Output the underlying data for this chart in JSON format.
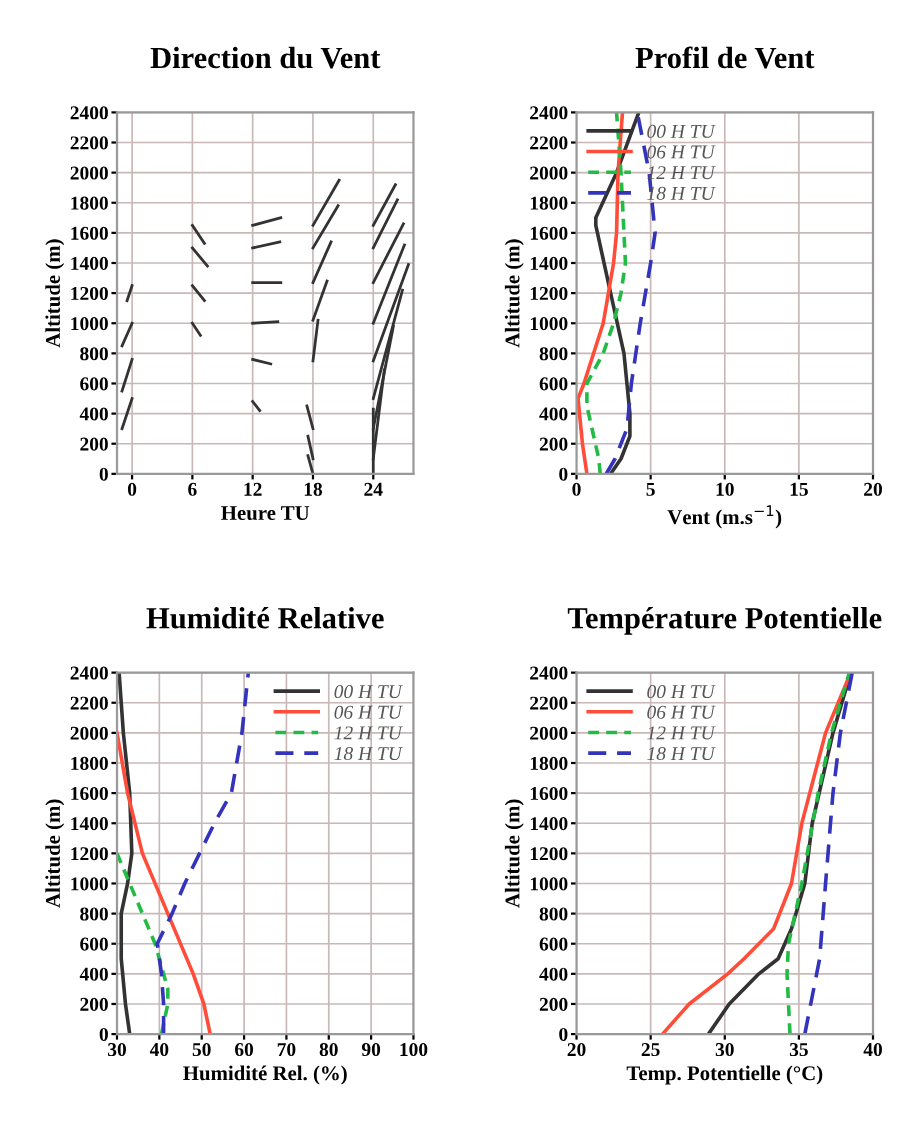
{
  "chart_data": [
    {
      "type": "line",
      "title": "Direction du Vent",
      "xlabel": "Heure TU",
      "ylabel": "Altitude (m)",
      "xlim": [
        -1.5,
        28
      ],
      "xticks": [
        0,
        6,
        12,
        18,
        24
      ],
      "ylim": [
        0,
        2400
      ],
      "yticks": [
        0,
        200,
        400,
        600,
        800,
        1000,
        1200,
        1400,
        1600,
        1800,
        2000,
        2200,
        2400
      ],
      "grid": true,
      "legend": false,
      "marker": "none",
      "line_style": "solid",
      "series": [
        {
          "color": "#333333",
          "x": [
            -1.0,
            0
          ],
          "values": [
            300,
            500
          ]
        },
        {
          "color": "#333333",
          "x": [
            -1.0,
            0
          ],
          "values": [
            550,
            760
          ]
        },
        {
          "color": "#333333",
          "x": [
            -1.0,
            0
          ],
          "values": [
            850,
            1000
          ]
        },
        {
          "color": "#333333",
          "x": [
            -0.5,
            0
          ],
          "values": [
            1150,
            1250
          ]
        },
        {
          "color": "#333333",
          "x": [
            6,
            7.2
          ],
          "values": [
            1650,
            1530
          ]
        },
        {
          "color": "#333333",
          "x": [
            6,
            7.5
          ],
          "values": [
            1500,
            1380
          ]
        },
        {
          "color": "#333333",
          "x": [
            6,
            7.2
          ],
          "values": [
            1250,
            1150
          ]
        },
        {
          "color": "#333333",
          "x": [
            6,
            6.8
          ],
          "values": [
            1000,
            920
          ]
        },
        {
          "color": "#333333",
          "x": [
            12,
            12.7
          ],
          "values": [
            480,
            420
          ]
        },
        {
          "color": "#333333",
          "x": [
            12,
            13.8
          ],
          "values": [
            760,
            730
          ]
        },
        {
          "color": "#333333",
          "x": [
            12,
            14.5
          ],
          "values": [
            1000,
            1010
          ]
        },
        {
          "color": "#333333",
          "x": [
            12,
            14.8
          ],
          "values": [
            1270,
            1270
          ]
        },
        {
          "color": "#333333",
          "x": [
            12,
            14.7
          ],
          "values": [
            1500,
            1540
          ]
        },
        {
          "color": "#333333",
          "x": [
            12,
            14.8
          ],
          "values": [
            1650,
            1700
          ]
        },
        {
          "color": "#333333",
          "x": [
            18,
            17.5
          ],
          "values": [
            0,
            120
          ]
        },
        {
          "color": "#333333",
          "x": [
            18,
            17.5
          ],
          "values": [
            100,
            250
          ]
        },
        {
          "color": "#333333",
          "x": [
            18,
            17.4
          ],
          "values": [
            300,
            450
          ]
        },
        {
          "color": "#333333",
          "x": [
            18,
            18.5
          ],
          "values": [
            750,
            1020
          ]
        },
        {
          "color": "#333333",
          "x": [
            18,
            19.4
          ],
          "values": [
            1020,
            1280
          ]
        },
        {
          "color": "#333333",
          "x": [
            18,
            19.8
          ],
          "values": [
            1270,
            1540
          ]
        },
        {
          "color": "#333333",
          "x": [
            18,
            20.5
          ],
          "values": [
            1500,
            1780
          ]
        },
        {
          "color": "#333333",
          "x": [
            18,
            20.6
          ],
          "values": [
            1650,
            1950
          ]
        },
        {
          "color": "#333333",
          "x": [
            24,
            24
          ],
          "values": [
            0,
            430
          ]
        },
        {
          "color": "#333333",
          "x": [
            24,
            25.1
          ],
          "values": [
            100,
            690
          ]
        },
        {
          "color": "#333333",
          "x": [
            24,
            26.0
          ],
          "values": [
            300,
            980
          ]
        },
        {
          "color": "#333333",
          "x": [
            24,
            26.9
          ],
          "values": [
            500,
            1220
          ]
        },
        {
          "color": "#333333",
          "x": [
            24,
            27.5
          ],
          "values": [
            750,
            1390
          ]
        },
        {
          "color": "#333333",
          "x": [
            24,
            27.1
          ],
          "values": [
            1000,
            1520
          ]
        },
        {
          "color": "#333333",
          "x": [
            24,
            27.0
          ],
          "values": [
            1270,
            1660
          ]
        },
        {
          "color": "#333333",
          "x": [
            24,
            26.4
          ],
          "values": [
            1500,
            1820
          ]
        },
        {
          "color": "#333333",
          "x": [
            24,
            26.2
          ],
          "values": [
            1650,
            1920
          ]
        }
      ]
    },
    {
      "type": "line",
      "title": "Profil de Vent",
      "xlabel": "Vent (m.s$^{−1}$)",
      "ylabel": "Altitude (m)",
      "xlim": [
        0,
        20
      ],
      "xticks": [
        0,
        5,
        10,
        15,
        20
      ],
      "ylim": [
        0,
        2400
      ],
      "yticks": [
        0,
        200,
        400,
        600,
        800,
        1000,
        1200,
        1400,
        1600,
        1800,
        2000,
        2200,
        2400
      ],
      "grid": true,
      "legend": "top left",
      "marker": "none",
      "series": [
        {
          "name": "00 H TU",
          "color": "#333333",
          "line_style": "solid",
          "x": [
            2.3,
            3.0,
            3.6,
            3.6,
            3.2,
            2.3,
            1.3,
            1.3,
            2.7,
            4.2
          ],
          "values": [
            0,
            100,
            250,
            400,
            800,
            1200,
            1650,
            1700,
            2000,
            2400
          ]
        },
        {
          "name": "06 H TU",
          "color": "#ff4d3a",
          "line_style": "solid",
          "x": [
            0.7,
            0.4,
            0.1,
            0.5,
            1.8,
            2.5,
            2.7,
            2.8,
            3.1
          ],
          "values": [
            0,
            200,
            500,
            600,
            1000,
            1400,
            1600,
            2000,
            2400
          ]
        },
        {
          "name": "12 H TU",
          "color": "#22bb44",
          "line_style": "dashed",
          "x": [
            1.6,
            1.5,
            0.7,
            0.7,
            1.8,
            2.5,
            3.0,
            3.3,
            3.2,
            3.0,
            2.7
          ],
          "values": [
            0,
            100,
            450,
            600,
            800,
            1000,
            1200,
            1400,
            1600,
            2000,
            2400
          ]
        },
        {
          "name": "18 H TU",
          "color": "#3333bb",
          "line_style": "dashed",
          "x": [
            2.0,
            2.6,
            3.4,
            3.7,
            4.3,
            5.0,
            5.3,
            4.9,
            4.1
          ],
          "values": [
            0,
            100,
            300,
            600,
            1000,
            1400,
            1600,
            2000,
            2400
          ]
        }
      ]
    },
    {
      "type": "line",
      "title": "Humidité Relative",
      "xlabel": "Humidité Rel. (%)",
      "ylabel": "Altitude (m)",
      "xlim": [
        30,
        100
      ],
      "xticks": [
        30,
        40,
        50,
        60,
        70,
        80,
        90,
        100
      ],
      "ylim": [
        0,
        2400
      ],
      "yticks": [
        0,
        200,
        400,
        600,
        800,
        1000,
        1200,
        1400,
        1600,
        1800,
        2000,
        2200,
        2400
      ],
      "grid": true,
      "legend": "top right",
      "marker": "none",
      "series": [
        {
          "name": "00 H TU",
          "color": "#333333",
          "line_style": "solid",
          "x": [
            33,
            32,
            31,
            31,
            32.5,
            33.5,
            33,
            31.5,
            30.5
          ],
          "values": [
            0,
            200,
            500,
            800,
            1000,
            1200,
            1600,
            2000,
            2400
          ]
        },
        {
          "name": "06 H TU",
          "color": "#ff4d3a",
          "line_style": "solid",
          "x": [
            52,
            50.5,
            48,
            42,
            36,
            32.5,
            30
          ],
          "values": [
            0,
            200,
            400,
            800,
            1200,
            1600,
            2000
          ]
        },
        {
          "name": "12 H TU",
          "color": "#22bb44",
          "line_style": "dashed",
          "x": [
            40.5,
            42,
            42,
            39,
            33,
            30
          ],
          "values": [
            0,
            200,
            300,
            600,
            1000,
            1200
          ]
        },
        {
          "name": "18 H TU",
          "color": "#3333bb",
          "line_style": "dashed",
          "x": [
            41,
            41,
            40.5,
            39.5,
            43,
            46,
            53,
            57,
            59.5,
            61
          ],
          "values": [
            0,
            200,
            400,
            600,
            800,
            1000,
            1400,
            1600,
            2000,
            2400
          ]
        }
      ]
    },
    {
      "type": "line",
      "title": "Température Potentielle",
      "xlabel": "Temp. Potentielle (°C)",
      "ylabel": "Altitude (m)",
      "xlim": [
        20,
        40
      ],
      "xticks": [
        20,
        25,
        30,
        35,
        40
      ],
      "ylim": [
        0,
        2400
      ],
      "yticks": [
        0,
        200,
        400,
        600,
        800,
        1000,
        1200,
        1400,
        1600,
        1800,
        2000,
        2200,
        2400
      ],
      "grid": true,
      "legend": "top left",
      "marker": "none",
      "series": [
        {
          "name": "00 H TU",
          "color": "#333333",
          "line_style": "solid",
          "x": [
            28.9,
            30.3,
            32.3,
            33.6,
            34.5,
            35.4,
            35.9,
            37.3,
            38.5
          ],
          "values": [
            0,
            200,
            400,
            500,
            700,
            1000,
            1400,
            2000,
            2400
          ]
        },
        {
          "name": "06 H TU",
          "color": "#ff4d3a",
          "line_style": "solid",
          "x": [
            25.8,
            27.6,
            30.2,
            31.3,
            33.3,
            34.5,
            35.2,
            36.8,
            38.5
          ],
          "values": [
            0,
            200,
            400,
            500,
            700,
            1000,
            1400,
            2000,
            2400
          ]
        },
        {
          "name": "12 H TU",
          "color": "#22bb44",
          "line_style": "dashed",
          "x": [
            34.4,
            34.2,
            34.3,
            35.2,
            36.3,
            37.2,
            38.4
          ],
          "values": [
            0,
            400,
            600,
            1000,
            1600,
            2000,
            2400
          ]
        },
        {
          "name": "18 H TU",
          "color": "#3333bb",
          "line_style": "dashed",
          "x": [
            35.4,
            36.4,
            36.8,
            37.3,
            37.8,
            38.6
          ],
          "values": [
            0,
            500,
            1000,
            1600,
            2000,
            2400
          ]
        }
      ]
    }
  ]
}
